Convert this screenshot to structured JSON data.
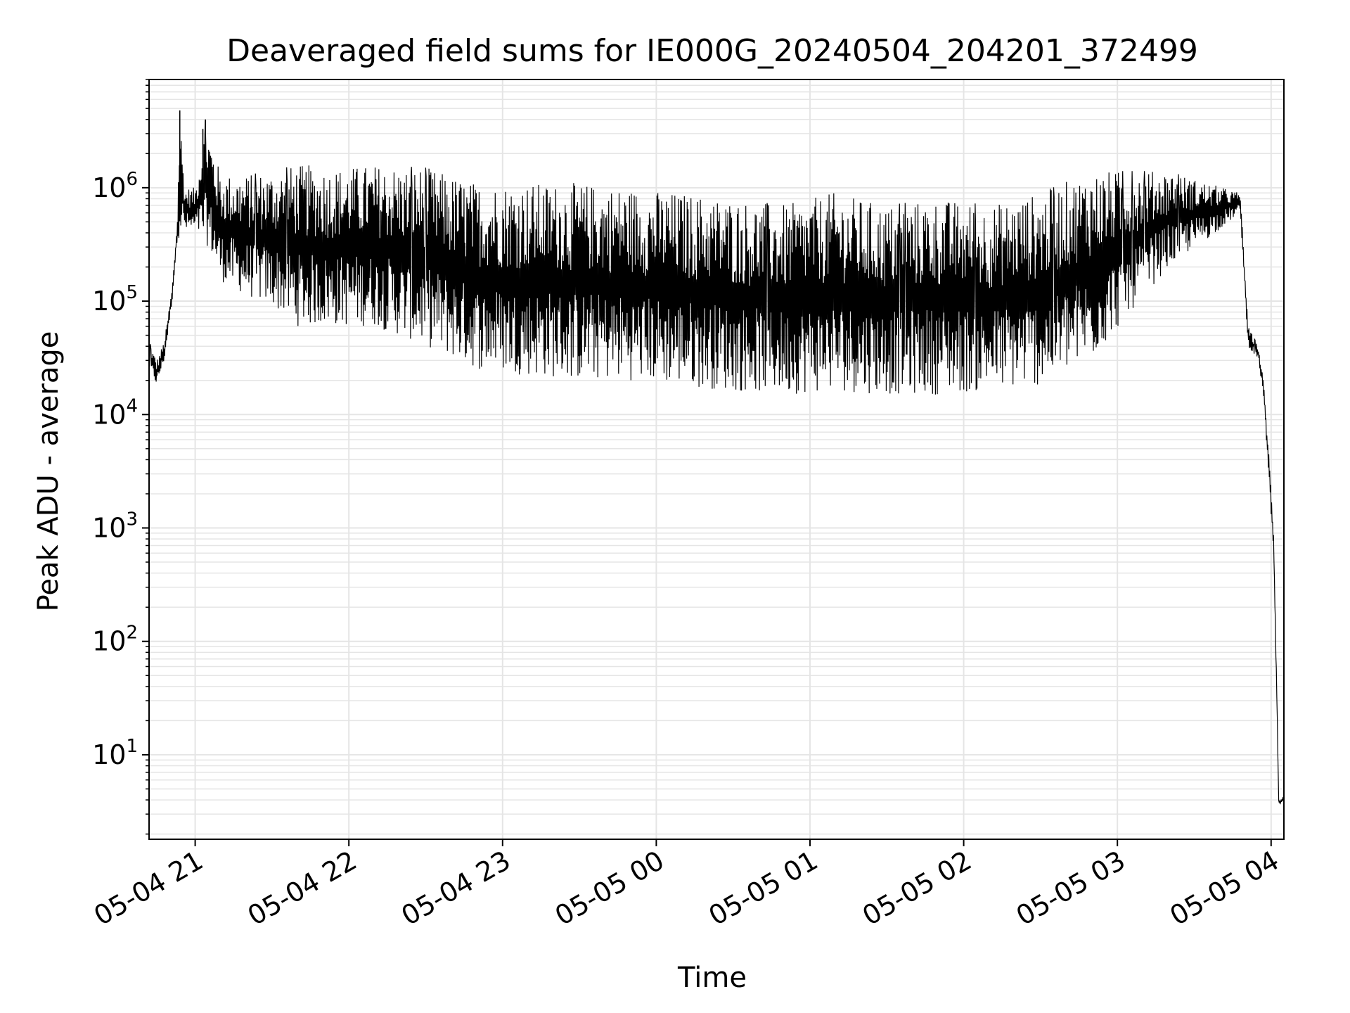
{
  "chart_data": {
    "type": "line",
    "title": "Deaveraged field sums for IE000G_20240504_204201_372499",
    "xlabel": "Time",
    "ylabel": "Peak ADU - average",
    "yscale": "log",
    "grid": true,
    "line_color": "#000000",
    "grid_color": "#e5e5e5",
    "xlim": [
      "2024-05-04 20:42",
      "2024-05-05 04:05"
    ],
    "ylim": [
      1.8,
      9000000
    ],
    "x_ticks": [
      {
        "value": "2024-05-04 21:00",
        "label": "05-04 21"
      },
      {
        "value": "2024-05-04 22:00",
        "label": "05-04 22"
      },
      {
        "value": "2024-05-04 23:00",
        "label": "05-04 23"
      },
      {
        "value": "2024-05-05 00:00",
        "label": "05-05 00"
      },
      {
        "value": "2024-05-05 01:00",
        "label": "05-05 01"
      },
      {
        "value": "2024-05-05 02:00",
        "label": "05-05 02"
      },
      {
        "value": "2024-05-05 03:00",
        "label": "05-05 03"
      },
      {
        "value": "2024-05-05 04:00",
        "label": "05-05 04"
      }
    ],
    "y_ticks": [
      {
        "value": 10,
        "base": "10",
        "exp": "1"
      },
      {
        "value": 100,
        "base": "10",
        "exp": "2"
      },
      {
        "value": 1000,
        "base": "10",
        "exp": "3"
      },
      {
        "value": 10000,
        "base": "10",
        "exp": "4"
      },
      {
        "value": 100000,
        "base": "10",
        "exp": "5"
      },
      {
        "value": 1000000,
        "base": "10",
        "exp": "6"
      }
    ],
    "series": [
      {
        "upper_envelope": [
          [
            "2024-05-04 20:42",
            45000
          ],
          [
            "2024-05-04 20:45",
            30000
          ],
          [
            "2024-05-04 20:48",
            45000
          ],
          [
            "2024-05-04 20:51",
            130000
          ],
          [
            "2024-05-04 20:53",
            500000
          ],
          [
            "2024-05-04 20:54",
            4800000
          ],
          [
            "2024-05-04 20:56",
            1000000
          ],
          [
            "2024-05-04 21:00",
            1000000
          ],
          [
            "2024-05-04 21:04",
            4000000
          ],
          [
            "2024-05-04 21:10",
            1300000
          ],
          [
            "2024-05-04 21:20",
            1300000
          ],
          [
            "2024-05-04 21:30",
            1400000
          ],
          [
            "2024-05-04 21:40",
            1600000
          ],
          [
            "2024-05-04 21:55",
            1500000
          ],
          [
            "2024-05-04 22:10",
            1600000
          ],
          [
            "2024-05-04 22:30",
            1500000
          ],
          [
            "2024-05-04 22:50",
            1100000
          ],
          [
            "2024-05-04 23:10",
            1100000
          ],
          [
            "2024-05-04 23:30",
            1100000
          ],
          [
            "2024-05-04 23:50",
            1000000
          ],
          [
            "2024-05-05 00:10",
            900000
          ],
          [
            "2024-05-05 00:30",
            800000
          ],
          [
            "2024-05-05 00:50",
            700000
          ],
          [
            "2024-05-05 01:10",
            900000
          ],
          [
            "2024-05-05 01:30",
            700000
          ],
          [
            "2024-05-05 01:50",
            800000
          ],
          [
            "2024-05-05 02:10",
            700000
          ],
          [
            "2024-05-05 02:30",
            900000
          ],
          [
            "2024-05-05 02:50",
            1400000
          ],
          [
            "2024-05-05 03:05",
            1400000
          ],
          [
            "2024-05-05 03:20",
            1400000
          ],
          [
            "2024-05-05 03:35",
            1100000
          ],
          [
            "2024-05-05 03:48",
            900000
          ],
          [
            "2024-05-05 03:51",
            60000
          ],
          [
            "2024-05-05 03:55",
            40000
          ],
          [
            "2024-05-05 03:57",
            20000
          ],
          [
            "2024-05-05 03:59",
            5000
          ],
          [
            "2024-05-05 04:01",
            1000
          ],
          [
            "2024-05-05 04:02",
            80
          ],
          [
            "2024-05-05 04:03",
            3.8
          ],
          [
            "2024-05-05 04:05",
            4.5
          ]
        ],
        "lower_envelope": [
          [
            "2024-05-04 20:42",
            25000
          ],
          [
            "2024-05-04 20:45",
            18000
          ],
          [
            "2024-05-04 20:48",
            30000
          ],
          [
            "2024-05-04 20:51",
            100000
          ],
          [
            "2024-05-04 20:53",
            350000
          ],
          [
            "2024-05-04 20:56",
            400000
          ],
          [
            "2024-05-04 21:00",
            400000
          ],
          [
            "2024-05-04 21:05",
            300000
          ],
          [
            "2024-05-04 21:10",
            150000
          ],
          [
            "2024-05-04 21:20",
            110000
          ],
          [
            "2024-05-04 21:30",
            90000
          ],
          [
            "2024-05-04 21:40",
            60000
          ],
          [
            "2024-05-04 21:55",
            60000
          ],
          [
            "2024-05-04 22:10",
            60000
          ],
          [
            "2024-05-04 22:30",
            40000
          ],
          [
            "2024-05-04 22:50",
            25000
          ],
          [
            "2024-05-04 23:10",
            22000
          ],
          [
            "2024-05-04 23:30",
            20000
          ],
          [
            "2024-05-04 23:50",
            20000
          ],
          [
            "2024-05-05 00:10",
            18000
          ],
          [
            "2024-05-05 00:30",
            16000
          ],
          [
            "2024-05-05 00:50",
            15000
          ],
          [
            "2024-05-05 01:10",
            16000
          ],
          [
            "2024-05-05 01:30",
            15000
          ],
          [
            "2024-05-05 01:50",
            15000
          ],
          [
            "2024-05-05 02:10",
            16000
          ],
          [
            "2024-05-05 02:30",
            18000
          ],
          [
            "2024-05-05 02:50",
            30000
          ],
          [
            "2024-05-05 03:05",
            80000
          ],
          [
            "2024-05-05 03:20",
            200000
          ],
          [
            "2024-05-05 03:35",
            350000
          ],
          [
            "2024-05-05 03:48",
            600000
          ],
          [
            "2024-05-05 03:51",
            40000
          ],
          [
            "2024-05-05 03:55",
            30000
          ],
          [
            "2024-05-05 03:57",
            15000
          ],
          [
            "2024-05-05 03:59",
            3000
          ],
          [
            "2024-05-05 04:01",
            500
          ],
          [
            "2024-05-05 04:02",
            50
          ],
          [
            "2024-05-05 04:03",
            3.6
          ],
          [
            "2024-05-05 04:05",
            3.8
          ]
        ]
      }
    ]
  }
}
